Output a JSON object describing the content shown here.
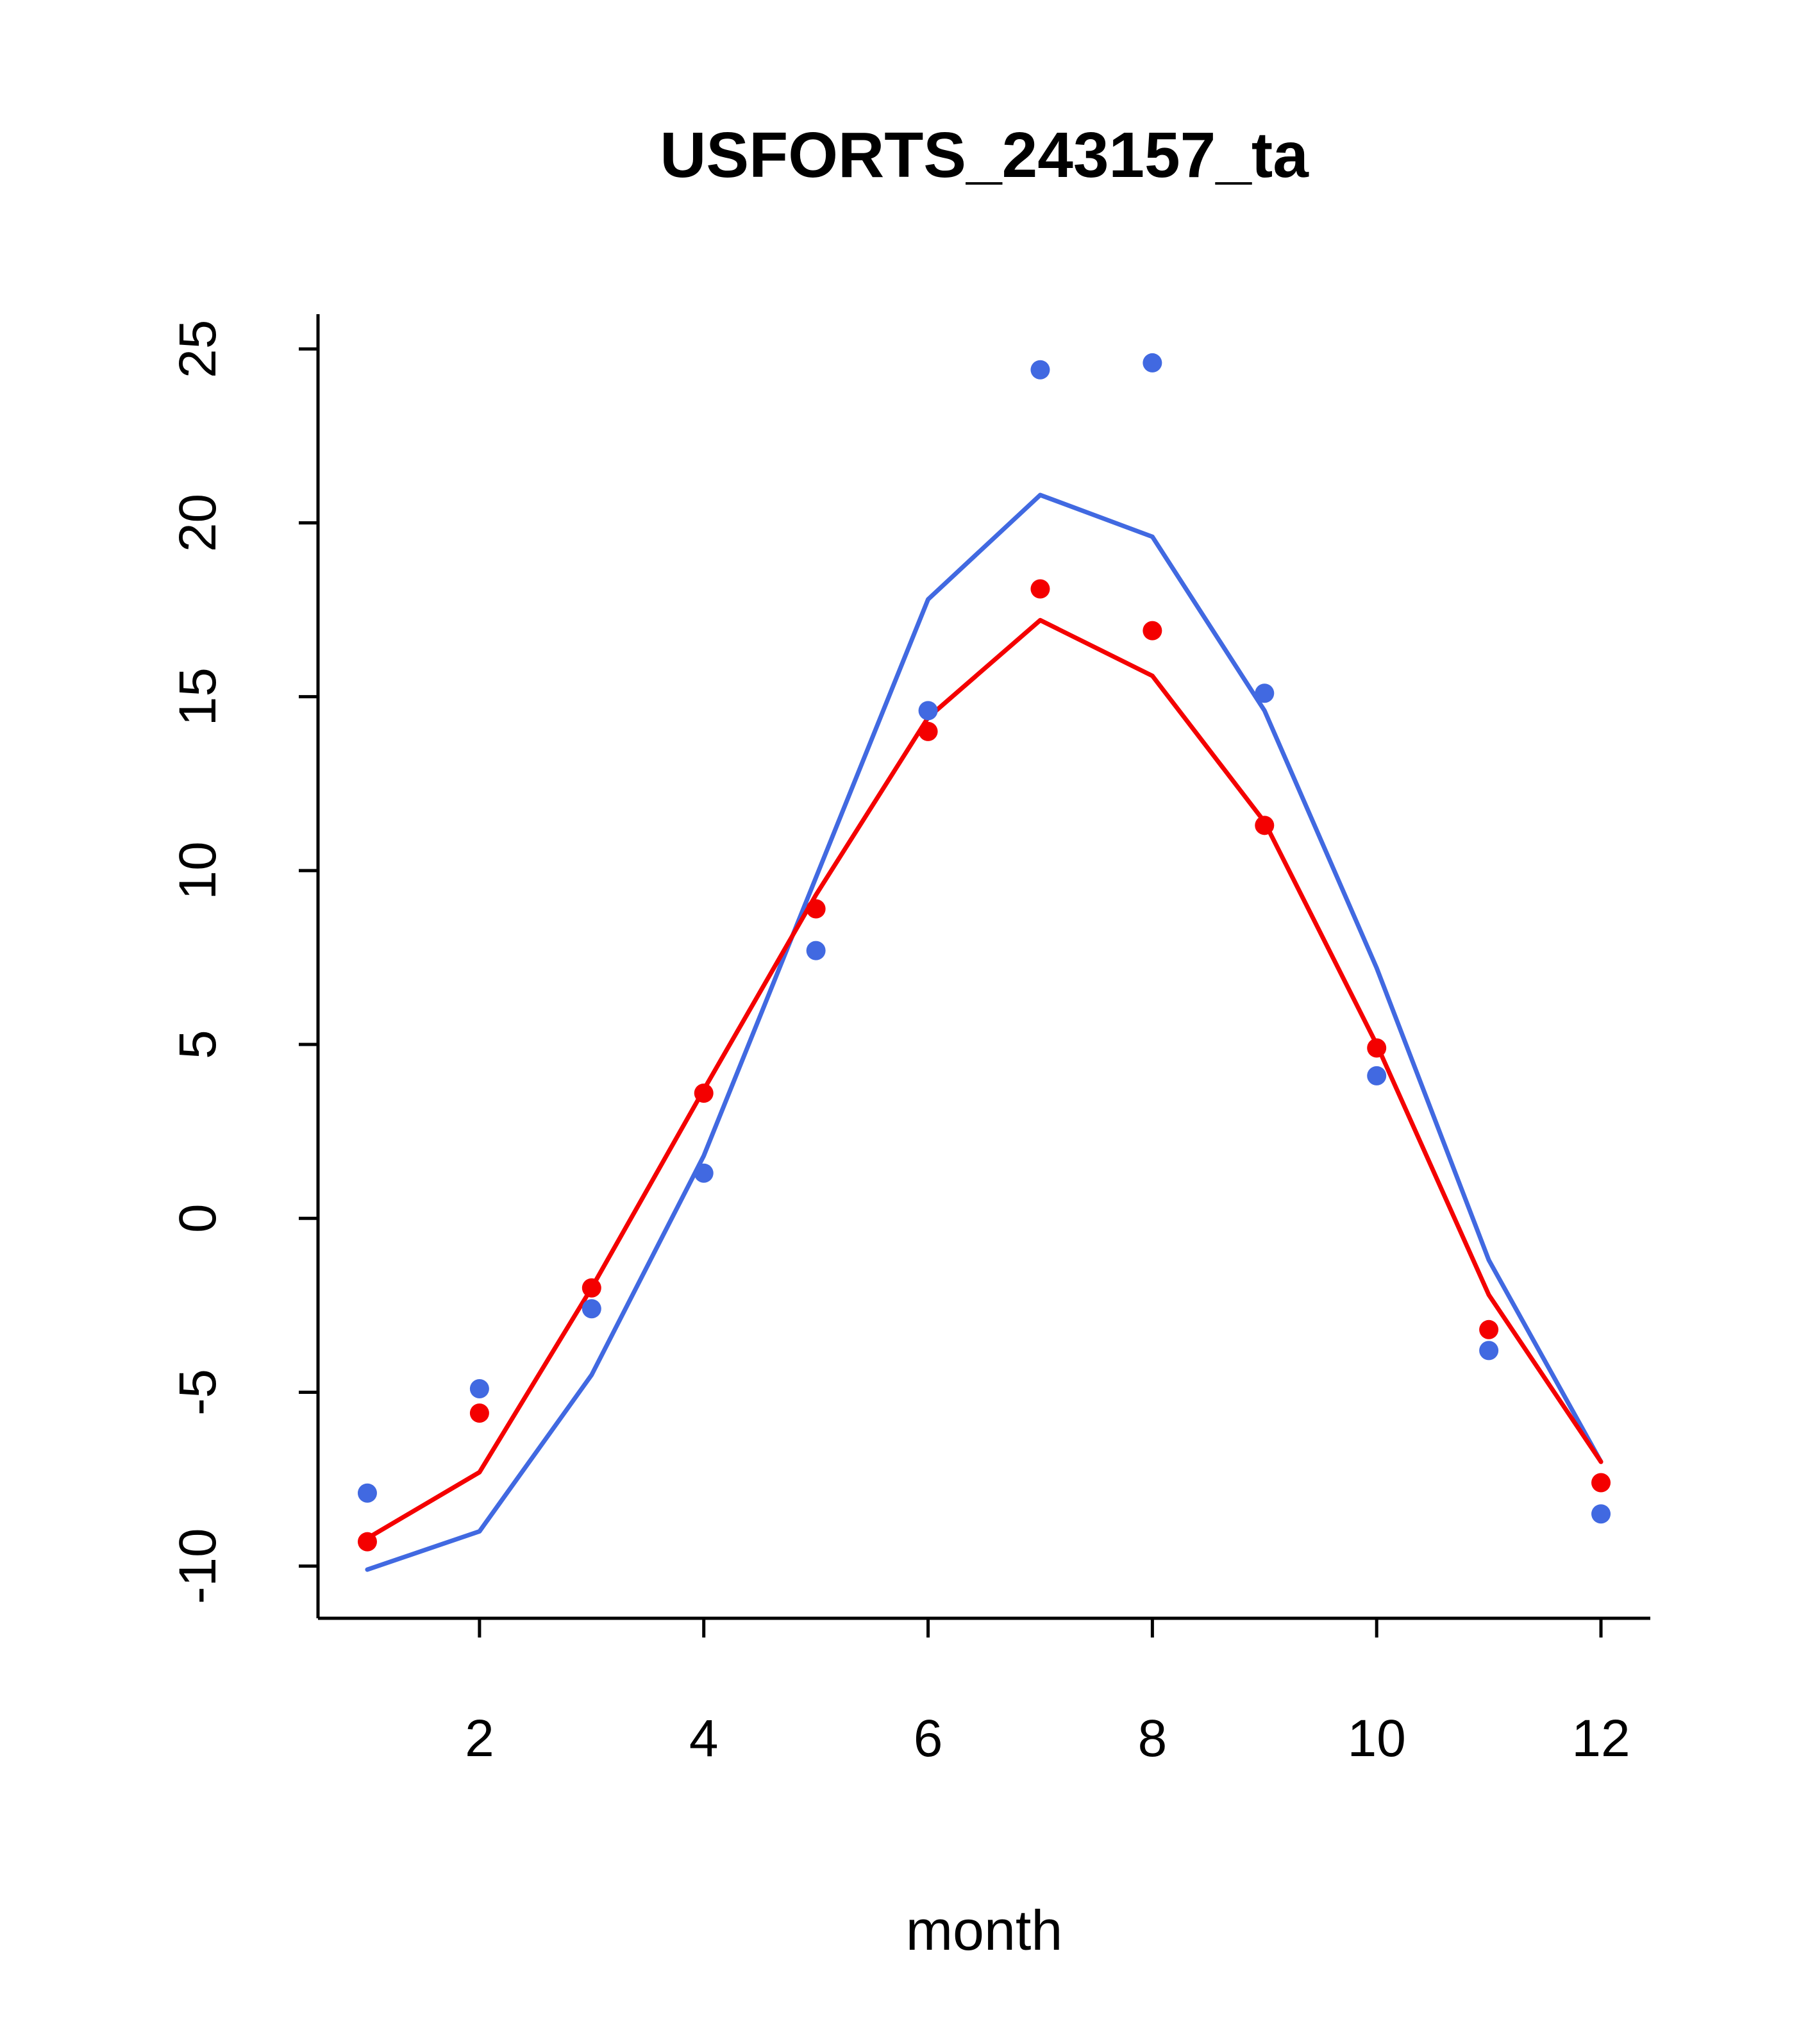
{
  "page": {
    "background": "#ffffff"
  },
  "chart_data": {
    "type": "line",
    "title": "USFORTS_243157_ta",
    "xlabel": "month",
    "ylabel": "",
    "x": [
      1,
      2,
      3,
      4,
      5,
      6,
      7,
      8,
      9,
      10,
      11,
      12
    ],
    "xticks": [
      2,
      4,
      6,
      8,
      10,
      12
    ],
    "yticks": [
      -10,
      -5,
      0,
      5,
      10,
      15,
      20,
      25
    ],
    "xlim": [
      0.56,
      12.44
    ],
    "ylim": [
      -11.5,
      26.0
    ],
    "grid": false,
    "legend_position": "none",
    "colors": {
      "blue": "#4169E1",
      "red": "#F40000",
      "axis": "#000000"
    },
    "series": [
      {
        "name": "blue-line",
        "kind": "line",
        "color": "#4169E1",
        "values": [
          -10.1,
          -9.0,
          -4.5,
          1.8,
          9.8,
          17.8,
          20.8,
          19.6,
          14.6,
          7.2,
          -1.2,
          -7.0
        ]
      },
      {
        "name": "red-line",
        "kind": "line",
        "color": "#F40000",
        "values": [
          -9.2,
          -7.3,
          -2.0,
          3.7,
          9.3,
          14.4,
          17.2,
          15.6,
          11.4,
          5.0,
          -2.2,
          -7.0
        ]
      },
      {
        "name": "blue-points",
        "kind": "points",
        "color": "#4169E1",
        "values": [
          -7.9,
          -4.9,
          -2.6,
          1.3,
          7.7,
          14.6,
          24.4,
          24.6,
          15.1,
          4.1,
          -3.8,
          -8.5
        ]
      },
      {
        "name": "red-points",
        "kind": "points",
        "color": "#F40000",
        "values": [
          -9.3,
          -5.6,
          -2.0,
          3.6,
          8.9,
          14.0,
          18.1,
          16.9,
          11.3,
          4.9,
          -3.2,
          -7.6
        ]
      }
    ]
  }
}
